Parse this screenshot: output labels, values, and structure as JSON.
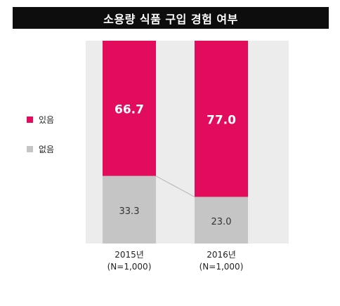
{
  "colors": {
    "yes": "#e30b5c",
    "no": "#c5c5c5",
    "panel": "#ececec",
    "title_bg": "#0d0d0d"
  },
  "title": "소용량 식품 구입 경험 여부",
  "legend": [
    {
      "label": "있음",
      "color": "#e30b5c"
    },
    {
      "label": "없음",
      "color": "#c5c5c5"
    }
  ],
  "chart_data": {
    "type": "bar",
    "stacked": true,
    "categories": [
      "2015년",
      "2016년"
    ],
    "category_sublabels": [
      "(N=1,000)",
      "(N=1,000)"
    ],
    "series": [
      {
        "name": "있음",
        "values": [
          66.7,
          77.0
        ],
        "labels": [
          "66.7",
          "77.0"
        ]
      },
      {
        "name": "없음",
        "values": [
          33.3,
          23.0
        ],
        "labels": [
          "33.3",
          "23.0"
        ]
      }
    ],
    "ylim": [
      0,
      100
    ],
    "grid": false,
    "legend_position": "left"
  }
}
